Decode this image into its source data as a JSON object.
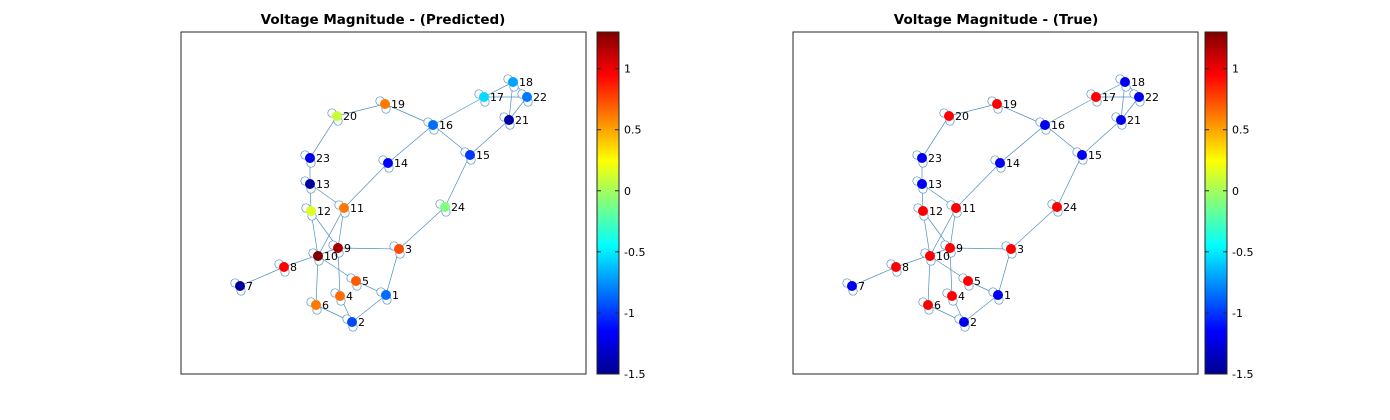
{
  "panels": [
    {
      "title": "Voltage Magnitude - (Predicted)",
      "values": {
        "1": -0.85,
        "2": -0.95,
        "3": 0.75,
        "4": 0.65,
        "5": 0.7,
        "6": 0.62,
        "7": -1.45,
        "8": 0.95,
        "9": 1.2,
        "10": 1.3,
        "11": 0.62,
        "12": 0.15,
        "13": -1.45,
        "14": -1.15,
        "15": -1.0,
        "16": -0.85,
        "17": -0.55,
        "18": -0.7,
        "19": 0.62,
        "20": 0.1,
        "21": -1.45,
        "22": -0.82,
        "23": -1.2,
        "24": -0.1
      }
    },
    {
      "title": "Voltage Magnitude - (True)",
      "values": {
        "1": -1.2,
        "2": -1.2,
        "3": 0.95,
        "4": 0.95,
        "5": 0.95,
        "6": 0.95,
        "7": -1.2,
        "8": 0.95,
        "9": 0.95,
        "10": 0.95,
        "11": 0.95,
        "12": 0.95,
        "13": -1.2,
        "14": -1.2,
        "15": -1.2,
        "16": -1.2,
        "17": 0.95,
        "18": -1.2,
        "19": 0.95,
        "20": 0.95,
        "21": -1.2,
        "22": -1.2,
        "23": -1.2,
        "24": 0.95
      }
    }
  ],
  "colorbar": {
    "min": -1.5,
    "max": 1.3,
    "ticks": [
      -1.5,
      -1,
      -0.5,
      0,
      0.5,
      1
    ],
    "tick_labels": [
      "-1.5",
      "-1",
      "-0.5",
      "0",
      "0.5",
      "1"
    ],
    "colormap": "jet"
  },
  "graph": {
    "nodes": [
      "1",
      "2",
      "3",
      "4",
      "5",
      "6",
      "7",
      "8",
      "9",
      "10",
      "11",
      "12",
      "13",
      "14",
      "15",
      "16",
      "17",
      "18",
      "19",
      "20",
      "21",
      "22",
      "23",
      "24"
    ],
    "edges": [
      [
        "1",
        "2"
      ],
      [
        "1",
        "3"
      ],
      [
        "1",
        "5"
      ],
      [
        "2",
        "4"
      ],
      [
        "2",
        "6"
      ],
      [
        "3",
        "9"
      ],
      [
        "3",
        "24"
      ],
      [
        "4",
        "9"
      ],
      [
        "5",
        "10"
      ],
      [
        "6",
        "10"
      ],
      [
        "7",
        "8"
      ],
      [
        "8",
        "9"
      ],
      [
        "9",
        "11"
      ],
      [
        "9",
        "12"
      ],
      [
        "10",
        "11"
      ],
      [
        "10",
        "12"
      ],
      [
        "11",
        "13"
      ],
      [
        "11",
        "14"
      ],
      [
        "12",
        "13"
      ],
      [
        "13",
        "23"
      ],
      [
        "14",
        "16"
      ],
      [
        "15",
        "16"
      ],
      [
        "15",
        "21"
      ],
      [
        "15",
        "24"
      ],
      [
        "16",
        "17"
      ],
      [
        "16",
        "19"
      ],
      [
        "17",
        "18"
      ],
      [
        "17",
        "22"
      ],
      [
        "18",
        "21"
      ],
      [
        "18",
        "22"
      ],
      [
        "19",
        "20"
      ],
      [
        "20",
        "23"
      ],
      [
        "21",
        "22"
      ]
    ]
  }
}
